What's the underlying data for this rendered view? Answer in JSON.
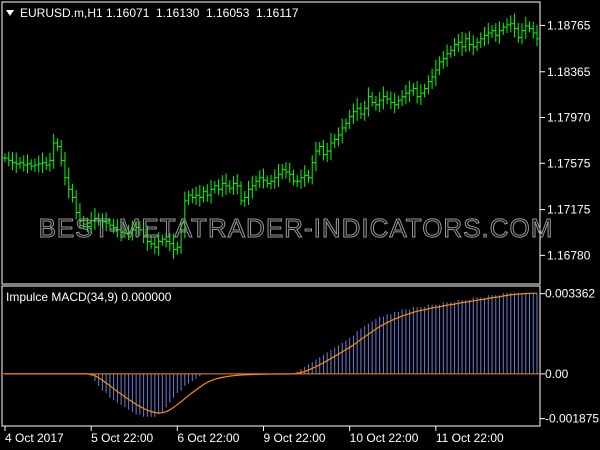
{
  "chart_data": [
    {
      "type": "ohlc",
      "symbol": "EURUSD.m,H1",
      "ohlc_readout": [
        "1.16071",
        "1.16130",
        "1.16053",
        "1.16117"
      ],
      "y_ticks": [
        "1.18765",
        "1.18365",
        "1.17970",
        "1.17575",
        "1.17175",
        "1.16780"
      ],
      "y_tick_values": [
        1.18765,
        1.18365,
        1.1797,
        1.17575,
        1.17175,
        1.1678
      ],
      "ylim": [
        1.1655,
        1.1895
      ],
      "bar_color": "#00ff00",
      "closes": [
        1.1762,
        1.176,
        1.1758,
        1.1757,
        1.1758,
        1.1756,
        1.1757,
        1.1755,
        1.1756,
        1.1757,
        1.1758,
        1.1756,
        1.176,
        1.1775,
        1.1772,
        1.176,
        1.1745,
        1.1735,
        1.1728,
        1.1715,
        1.1708,
        1.1705,
        1.1703,
        1.1708,
        1.171,
        1.1708,
        1.1707,
        1.1706,
        1.1704,
        1.1702,
        1.17,
        1.1698,
        1.1697,
        1.1698,
        1.17,
        1.1702,
        1.17,
        1.1695,
        1.169,
        1.1688,
        1.1685,
        1.169,
        1.1692,
        1.169,
        1.1688,
        1.1683,
        1.1685,
        1.17,
        1.1725,
        1.173,
        1.1728,
        1.173,
        1.1728,
        1.1733,
        1.173,
        1.1735,
        1.1738,
        1.1735,
        1.174,
        1.1738,
        1.1736,
        1.174,
        1.1738,
        1.1725,
        1.1728,
        1.1735,
        1.1738,
        1.1742,
        1.1745,
        1.1743,
        1.174,
        1.1742,
        1.1745,
        1.1748,
        1.1752,
        1.175,
        1.1748,
        1.1742,
        1.1742,
        1.1745,
        1.1747,
        1.1745,
        1.1758,
        1.1768,
        1.1772,
        1.1765,
        1.1768,
        1.1775,
        1.1778,
        1.1782,
        1.1788,
        1.1792,
        1.1798,
        1.1802,
        1.1805,
        1.18,
        1.1805,
        1.1815,
        1.181,
        1.1808,
        1.1812,
        1.1815,
        1.1813,
        1.181,
        1.1808,
        1.1812,
        1.1815,
        1.1818,
        1.182,
        1.1822,
        1.1815,
        1.1818,
        1.1822,
        1.1828,
        1.1832,
        1.1838,
        1.1845,
        1.1848,
        1.1852,
        1.1855,
        1.186,
        1.1862,
        1.1858,
        1.1865,
        1.186,
        1.1858,
        1.1862,
        1.1865,
        1.1868,
        1.187,
        1.1872,
        1.1868,
        1.1872,
        1.1875,
        1.1877,
        1.1878,
        1.1874,
        1.1866,
        1.1872,
        1.1876,
        1.1874,
        1.187,
        1.1865
      ]
    },
    {
      "type": "bar",
      "indicator_label": "Impulce MACD(34,9) 0.000000",
      "y_ticks": [
        "0.003362",
        "0.00",
        "-0.001875"
      ],
      "y_tick_values": [
        0.003362,
        0.0,
        -0.001875
      ],
      "ylim": [
        -0.0021,
        0.0036
      ],
      "histogram_color": "#6a7fd8",
      "signal_color": "#ff8c00",
      "zero_color": "#ff8c00",
      "values": [
        0,
        0,
        0,
        0,
        0,
        0,
        0,
        0,
        0,
        0,
        0,
        0,
        0,
        0,
        0,
        0,
        0,
        0,
        0,
        0,
        0,
        0,
        0,
        -0.0001,
        -0.0003,
        -0.0005,
        -0.0007,
        -0.0008,
        -0.001,
        -0.0011,
        -0.0012,
        -0.0013,
        -0.0014,
        -0.0015,
        -0.0016,
        -0.0017,
        -0.0017,
        -0.0018,
        -0.0018,
        -0.0018,
        -0.0018,
        -0.0017,
        -0.0016,
        -0.0014,
        -0.0012,
        -0.001,
        -0.0008,
        -0.0007,
        -0.0005,
        -0.0004,
        -0.0003,
        -0.0002,
        -0.0001,
        0,
        0,
        0,
        0,
        0,
        0,
        0,
        0,
        0,
        0,
        0,
        0,
        0,
        0,
        0,
        0,
        0,
        0,
        0,
        0,
        0,
        0,
        0,
        0,
        0,
        0.0001,
        0.0002,
        0.0003,
        0.0004,
        0.0005,
        0.0006,
        0.0007,
        0.0008,
        0.0009,
        0.001,
        0.0011,
        0.0012,
        0.0013,
        0.0014,
        0.0015,
        0.0016,
        0.0018,
        0.0019,
        0.002,
        0.0021,
        0.0022,
        0.0023,
        0.0024,
        0.0024,
        0.0025,
        0.0025,
        0.0026,
        0.0026,
        0.0027,
        0.0027,
        0.0027,
        0.0028,
        0.0028,
        0.0028,
        0.0028,
        0.0029,
        0.0029,
        0.0029,
        0.0029,
        0.003,
        0.003,
        0.003,
        0.003,
        0.0031,
        0.0031,
        0.0031,
        0.0031,
        0.0032,
        0.0032,
        0.0032,
        0.0032,
        0.0033,
        0.0033,
        0.0033,
        0.0033,
        0.0034,
        0.0034,
        0.0034,
        0.0034,
        0.0034,
        0.0034,
        0.0034,
        0.0034,
        0.0034,
        0.0034
      ]
    }
  ],
  "x_axis": {
    "labels": [
      "4 Oct 2017",
      "5 Oct 22:00",
      "6 Oct 22:00",
      "9 Oct 22:00",
      "10 Oct 22:00",
      "11 Oct 22:00"
    ],
    "bar_index": [
      0,
      23,
      46,
      69,
      92,
      115
    ]
  },
  "watermark": "BEST-METATRADER-INDICATORS.COM",
  "colors": {
    "background": "#000000",
    "frame": "#ffffff",
    "text": "#ffffff",
    "bars": "#00ff00",
    "histogram": "#6a7fd8",
    "signal": "#ff8c00",
    "watermark": "#9a9a9a"
  }
}
